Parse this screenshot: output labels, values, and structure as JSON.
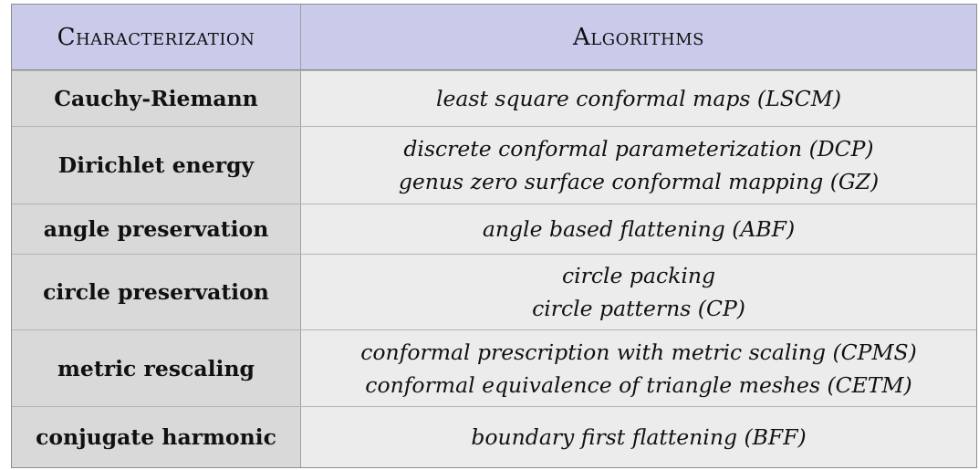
{
  "table": {
    "headers": [
      "Characterization",
      "Algorithms"
    ],
    "rows": [
      {
        "characterization": "Cauchy-Riemann",
        "algorithms": [
          "least square conformal maps (LSCM)"
        ]
      },
      {
        "characterization": "Dirichlet energy",
        "algorithms": [
          "discrete conformal parameterization (DCP)",
          "genus zero surface conformal mapping (GZ)"
        ]
      },
      {
        "characterization": "angle preservation",
        "algorithms": [
          "angle based flattening (ABF)"
        ]
      },
      {
        "characterization": "circle preservation",
        "algorithms": [
          "circle packing",
          "circle patterns (CP)"
        ]
      },
      {
        "characterization": "metric rescaling",
        "algorithms": [
          "conformal prescription with metric scaling (CPMS)",
          "conformal equivalence of triangle meshes (CETM)"
        ]
      },
      {
        "characterization": "conjugate harmonic",
        "algorithms": [
          "boundary first flattening (BFF)"
        ]
      }
    ]
  },
  "colors": {
    "header_bg": "#cacbeb",
    "first_col_bg": "#d9d9d9",
    "second_col_bg": "#ececec",
    "border": "#8d8d8d"
  }
}
